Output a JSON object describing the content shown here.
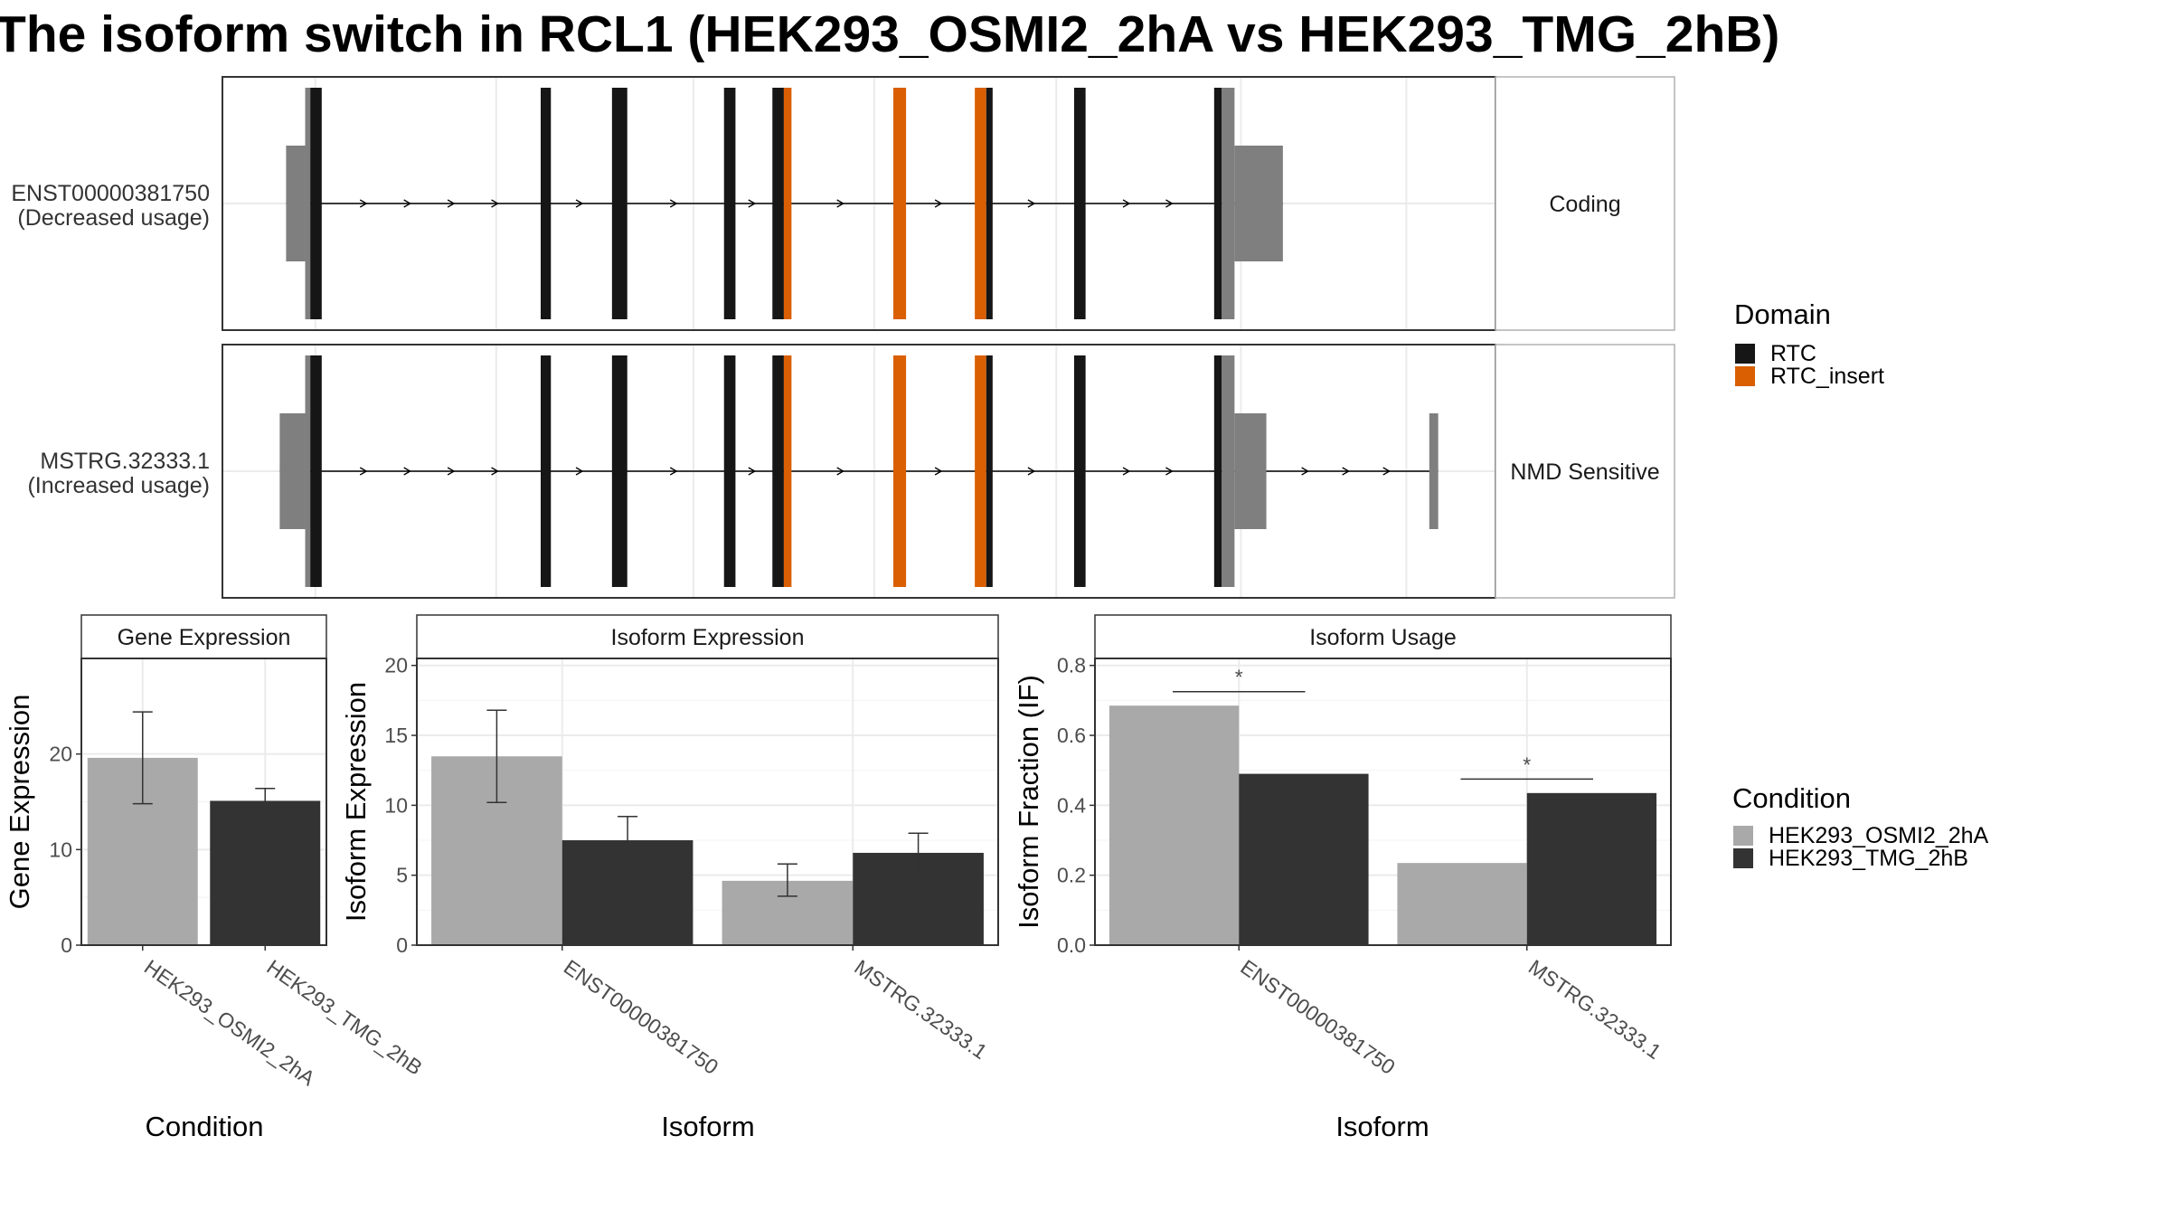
{
  "title": "The isoform switch in RCL1 (HEK293_OSMI2_2hA vs HEK293_TMG_2hB)",
  "colors": {
    "RTC": "#161616",
    "RTC_insert": "#d95f02",
    "utr": "#7f7f7f",
    "condition_a": "#a9a9a9",
    "condition_b": "#333333",
    "grid": "#ebebeb",
    "strip_fill": "#ffffff",
    "panel_border": "#333333"
  },
  "legends": {
    "domain": {
      "title": "Domain",
      "items": [
        {
          "label": "RTC",
          "color_key": "RTC"
        },
        {
          "label": "RTC_insert",
          "color_key": "RTC_insert"
        }
      ]
    },
    "condition": {
      "title": "Condition",
      "items": [
        {
          "label": "HEK293_OSMI2_2hA",
          "color_key": "condition_a"
        },
        {
          "label": "HEK293_TMG_2hB",
          "color_key": "condition_b"
        }
      ]
    }
  },
  "chart_data": [
    {
      "type": "isoform-structure",
      "transcripts": [
        {
          "id": "ENST00000381750",
          "usage_label": "(Decreased usage)",
          "category": "Coding",
          "exons": [
            {
              "start": 0.05,
              "end": 0.065,
              "kind": "utr_thin"
            },
            {
              "start": 0.065,
              "end": 0.069,
              "kind": "utr"
            },
            {
              "start": 0.069,
              "end": 0.078,
              "kind": "RTC"
            },
            {
              "start": 0.25,
              "end": 0.258,
              "kind": "RTC"
            },
            {
              "start": 0.306,
              "end": 0.318,
              "kind": "RTC"
            },
            {
              "start": 0.394,
              "end": 0.403,
              "kind": "RTC"
            },
            {
              "start": 0.432,
              "end": 0.441,
              "kind": "RTC"
            },
            {
              "start": 0.441,
              "end": 0.447,
              "kind": "RTC_insert"
            },
            {
              "start": 0.527,
              "end": 0.537,
              "kind": "RTC_insert"
            },
            {
              "start": 0.591,
              "end": 0.6,
              "kind": "RTC_insert"
            },
            {
              "start": 0.6,
              "end": 0.605,
              "kind": "RTC"
            },
            {
              "start": 0.669,
              "end": 0.678,
              "kind": "RTC"
            },
            {
              "start": 0.779,
              "end": 0.785,
              "kind": "RTC"
            },
            {
              "start": 0.785,
              "end": 0.795,
              "kind": "utr"
            },
            {
              "start": 0.795,
              "end": 0.833,
              "kind": "utr_thin"
            }
          ]
        },
        {
          "id": "MSTRG.32333.1",
          "usage_label": "(Increased usage)",
          "category": "NMD Sensitive",
          "exons": [
            {
              "start": 0.045,
              "end": 0.065,
              "kind": "utr_thin"
            },
            {
              "start": 0.065,
              "end": 0.069,
              "kind": "utr"
            },
            {
              "start": 0.069,
              "end": 0.078,
              "kind": "RTC"
            },
            {
              "start": 0.25,
              "end": 0.258,
              "kind": "RTC"
            },
            {
              "start": 0.306,
              "end": 0.318,
              "kind": "RTC"
            },
            {
              "start": 0.394,
              "end": 0.403,
              "kind": "RTC"
            },
            {
              "start": 0.432,
              "end": 0.441,
              "kind": "RTC"
            },
            {
              "start": 0.441,
              "end": 0.447,
              "kind": "RTC_insert"
            },
            {
              "start": 0.527,
              "end": 0.537,
              "kind": "RTC_insert"
            },
            {
              "start": 0.591,
              "end": 0.6,
              "kind": "RTC_insert"
            },
            {
              "start": 0.6,
              "end": 0.605,
              "kind": "RTC"
            },
            {
              "start": 0.669,
              "end": 0.678,
              "kind": "RTC"
            },
            {
              "start": 0.779,
              "end": 0.785,
              "kind": "RTC"
            },
            {
              "start": 0.785,
              "end": 0.795,
              "kind": "utr"
            },
            {
              "start": 0.795,
              "end": 0.82,
              "kind": "utr_thin"
            },
            {
              "start": 0.948,
              "end": 0.955,
              "kind": "utr_thin"
            }
          ]
        }
      ]
    },
    {
      "type": "bar",
      "strip": "Gene Expression",
      "xlabel": "Condition",
      "ylabel": "Gene Expression",
      "ylim": [
        0,
        30
      ],
      "yticks": [
        0,
        10,
        20
      ],
      "categories": [
        "HEK293_OSMI2_2hA",
        "HEK293_TMG_2hB"
      ],
      "values": [
        19.6,
        15.1
      ],
      "error": [
        [
          14.8,
          24.4
        ],
        [
          13.8,
          16.4
        ]
      ]
    },
    {
      "type": "bar",
      "strip": "Isoform Expression",
      "xlabel": "Isoform",
      "ylabel": "Isoform Expression",
      "ylim": [
        0,
        20.5
      ],
      "yticks": [
        0,
        5,
        10,
        15,
        20
      ],
      "categories": [
        "ENST00000381750",
        "MSTRG.32333.1"
      ],
      "series": [
        {
          "name": "HEK293_OSMI2_2hA",
          "values": [
            13.5,
            4.6
          ],
          "error": [
            [
              10.2,
              16.8
            ],
            [
              3.5,
              5.8
            ]
          ]
        },
        {
          "name": "HEK293_TMG_2hB",
          "values": [
            7.5,
            6.6
          ],
          "error": [
            [
              5.7,
              9.2
            ],
            [
              5.2,
              8.0
            ]
          ]
        }
      ]
    },
    {
      "type": "bar",
      "strip": "Isoform Usage",
      "xlabel": "Isoform",
      "ylabel": "Isoform Fraction (IF)",
      "ylim": [
        0,
        0.82
      ],
      "yticks": [
        "0.0",
        "0.2",
        "0.4",
        "0.6",
        "0.8"
      ],
      "categories": [
        "ENST00000381750",
        "MSTRG.32333.1"
      ],
      "series": [
        {
          "name": "HEK293_OSMI2_2hA",
          "values": [
            0.685,
            0.235
          ]
        },
        {
          "name": "HEK293_TMG_2hB",
          "values": [
            0.49,
            0.435
          ]
        }
      ],
      "significance": [
        {
          "category": 0,
          "label": "*",
          "y": 0.725
        },
        {
          "category": 1,
          "label": "*",
          "y": 0.475
        }
      ]
    }
  ]
}
